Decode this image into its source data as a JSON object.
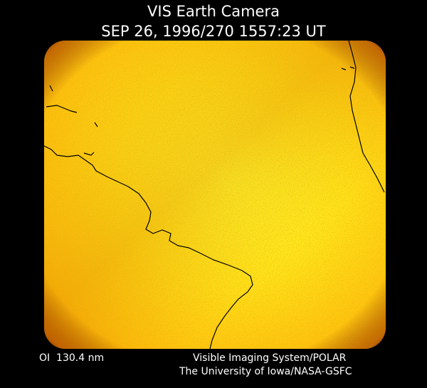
{
  "header": {
    "title": "VIS Earth Camera",
    "timestamp": "SEP 26, 1996/270 1557:23 UT"
  },
  "footer": {
    "filter": "OI  130.4 nm",
    "instrument": "Visible Imaging System/POLAR",
    "institution": "The University of Iowa/NASA-GSFC"
  }
}
